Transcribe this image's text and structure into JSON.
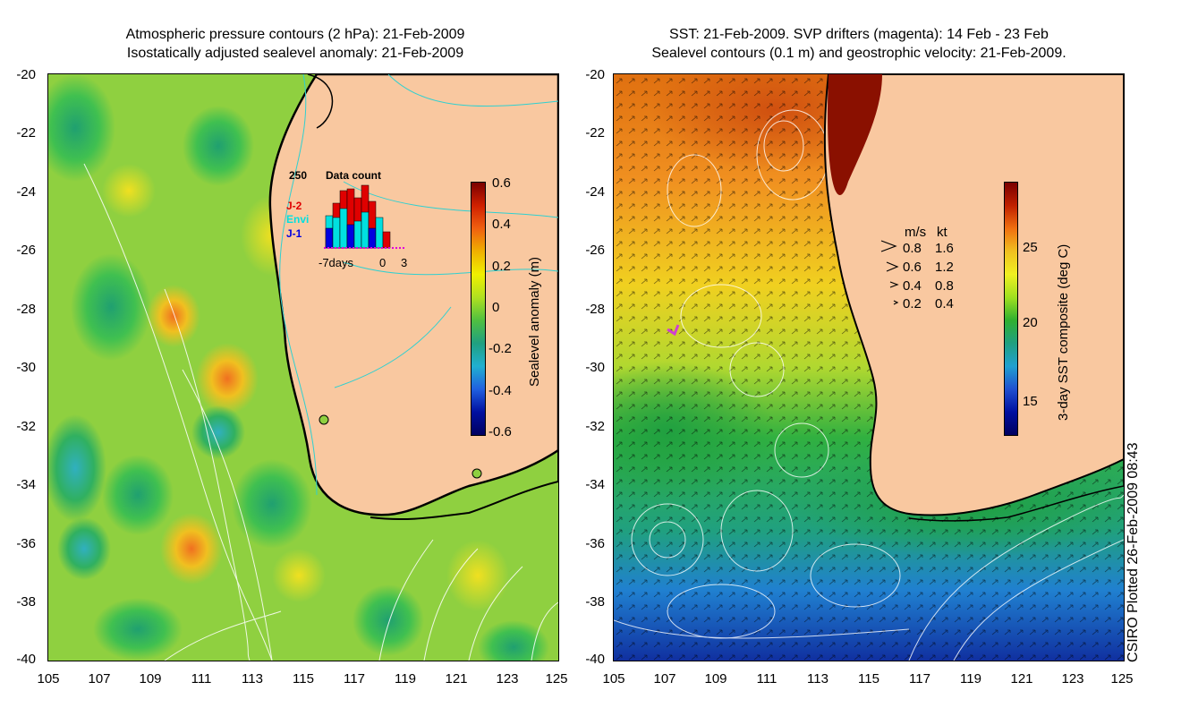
{
  "left_panel": {
    "title_line1": "Atmospheric pressure contours (2 hPa): 21-Feb-2009",
    "title_line2": "Isostatically adjusted sealevel anomaly: 21-Feb-2009",
    "colorbar_label": "Sealevel anomaly (m)",
    "colorbar_ticks": [
      "0.6",
      "0.4",
      "0.2",
      "0",
      "-0.2",
      "-0.4",
      "-0.6"
    ],
    "inset": {
      "count_label": "250",
      "title": "Data count",
      "legend": [
        {
          "label": "J-2",
          "color": "#e00000"
        },
        {
          "label": "Envi",
          "color": "#00e0e0"
        },
        {
          "label": "J-1",
          "color": "#0000e0"
        }
      ],
      "x_left": "-7days",
      "x_mid": "0",
      "x_right": "3"
    }
  },
  "right_panel": {
    "title_line1": "SST: 21-Feb-2009. SVP drifters (magenta): 14 Feb - 23 Feb",
    "title_line2": "Sealevel contours (0.1 m) and geostrophic velocity: 21-Feb-2009.",
    "colorbar_label": "3-day SST composite (deg C)",
    "colorbar_ticks": [
      "25",
      "20",
      "15"
    ],
    "speed_legend": {
      "header_ms": "m/s",
      "header_kt": "kt",
      "rows": [
        {
          "ms": "0.8",
          "kt": "1.6"
        },
        {
          "ms": "0.6",
          "kt": "1.2"
        },
        {
          "ms": "0.4",
          "kt": "0.8"
        },
        {
          "ms": "0.2",
          "kt": "0.4"
        }
      ]
    }
  },
  "axes": {
    "y_ticks": [
      "-20",
      "-22",
      "-24",
      "-26",
      "-28",
      "-30",
      "-32",
      "-34",
      "-36",
      "-38",
      "-40"
    ],
    "x_ticks": [
      "105",
      "107",
      "109",
      "111",
      "113",
      "115",
      "117",
      "119",
      "121",
      "123",
      "125"
    ]
  },
  "footer": "CSIRO Plotted 26-Feb-2009 08:43",
  "colors": {
    "land": "#f9c8a0",
    "sea_anomaly_base": "#9ad63c",
    "sst_warm": "#e07010",
    "sst_cool": "#2050c0"
  }
}
